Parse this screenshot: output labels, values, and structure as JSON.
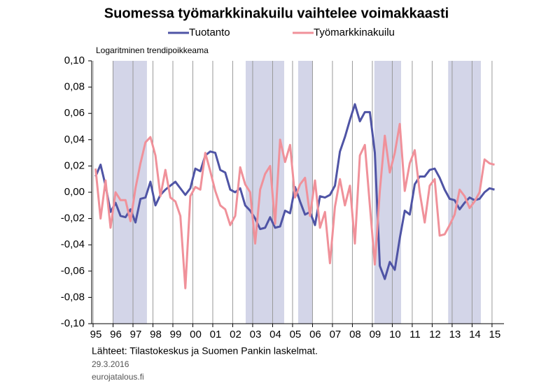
{
  "chart_data": {
    "type": "line",
    "title": "Suomessa työmarkkinakuilu vaihtelee voimakkaasti",
    "y_label": "Logaritminen trendipoikkeama",
    "source": "Lähteet: Tilastokeskus ja Suomen Pankin laskelmat.",
    "date": "29.3.2016",
    "site": "eurojatalous.fi",
    "x": [
      0.125,
      0.375,
      0.625,
      0.875,
      1.125,
      1.375,
      1.625,
      1.875,
      2.125,
      2.375,
      2.625,
      2.875,
      3.125,
      3.375,
      3.625,
      3.875,
      4.125,
      4.375,
      4.625,
      4.875,
      5.125,
      5.375,
      5.625,
      5.875,
      6.125,
      6.375,
      6.625,
      6.875,
      7.125,
      7.375,
      7.625,
      7.875,
      8.125,
      8.375,
      8.625,
      8.875,
      9.125,
      9.375,
      9.625,
      9.875,
      10.125,
      10.375,
      10.625,
      10.875,
      11.125,
      11.375,
      11.625,
      11.875,
      12.125,
      12.375,
      12.625,
      12.875,
      13.125,
      13.375,
      13.625,
      13.875,
      14.125,
      14.375,
      14.625,
      14.875,
      15.125,
      15.375,
      15.625,
      15.875,
      16.125,
      16.375,
      16.625,
      16.875,
      17.125,
      17.375,
      17.625,
      17.875,
      18.125,
      18.375,
      18.625,
      18.875,
      19.125,
      19.375,
      19.625,
      19.875,
      20.125
    ],
    "series": [
      {
        "name": "Tuotanto",
        "color": "#4f54a5",
        "values": [
          0.012,
          0.021,
          0.005,
          -0.015,
          -0.008,
          -0.018,
          -0.019,
          -0.013,
          -0.023,
          -0.005,
          -0.004,
          0.008,
          -0.01,
          -0.002,
          0.002,
          0.005,
          0.008,
          0.003,
          -0.002,
          0.003,
          0.018,
          0.016,
          0.028,
          0.031,
          0.03,
          0.017,
          0.015,
          0.002,
          0.0,
          0.003,
          -0.01,
          -0.014,
          -0.02,
          -0.028,
          -0.027,
          -0.019,
          -0.027,
          -0.026,
          -0.014,
          -0.016,
          0.004,
          -0.007,
          -0.017,
          -0.015,
          -0.025,
          -0.003,
          -0.004,
          -0.002,
          0.005,
          0.031,
          0.042,
          0.055,
          0.067,
          0.054,
          0.061,
          0.061,
          0.03,
          -0.056,
          -0.066,
          -0.053,
          -0.059,
          -0.035,
          -0.014,
          -0.017,
          0.006,
          0.012,
          0.012,
          0.017,
          0.018,
          0.011,
          0.002,
          -0.005,
          -0.006,
          -0.013,
          -0.008,
          -0.004,
          -0.006,
          -0.005,
          0.0,
          0.003,
          0.002
        ]
      },
      {
        "name": "Työmarkkinakuilu",
        "color": "#f0919a",
        "values": [
          0.018,
          -0.02,
          0.009,
          -0.027,
          0.0,
          -0.006,
          -0.006,
          -0.022,
          0.003,
          0.022,
          0.038,
          0.042,
          0.028,
          -0.003,
          0.017,
          -0.004,
          -0.007,
          -0.018,
          -0.073,
          -0.003,
          0.004,
          0.002,
          0.03,
          0.016,
          0.001,
          -0.01,
          -0.013,
          -0.025,
          -0.018,
          0.019,
          0.006,
          0.0,
          -0.039,
          0.002,
          0.014,
          0.02,
          -0.024,
          0.04,
          0.023,
          0.036,
          -0.004,
          0.006,
          0.011,
          -0.018,
          0.009,
          -0.027,
          -0.015,
          -0.054,
          -0.011,
          0.01,
          -0.01,
          0.005,
          -0.039,
          0.028,
          0.036,
          -0.01,
          -0.055,
          0.001,
          0.043,
          0.015,
          0.03,
          0.052,
          0.001,
          0.022,
          0.032,
          0.0,
          -0.023,
          0.005,
          0.01,
          -0.033,
          -0.032,
          -0.025,
          -0.017,
          0.002,
          -0.003,
          -0.012,
          -0.007,
          0.0,
          0.025,
          0.022,
          0.021
        ]
      }
    ],
    "shaded_ranges": [
      [
        0.98,
        2.7
      ],
      [
        7.65,
        9.58
      ],
      [
        10.28,
        11.0
      ],
      [
        14.1,
        15.44
      ],
      [
        17.8,
        19.44
      ]
    ],
    "shade_color": "#d3d5e8",
    "xlim": [
      -0.07,
      20.6
    ],
    "xticks": [
      {
        "value": 0,
        "label": "95"
      },
      {
        "value": 1,
        "label": "96"
      },
      {
        "value": 2,
        "label": "97"
      },
      {
        "value": 3,
        "label": "98"
      },
      {
        "value": 4,
        "label": "99"
      },
      {
        "value": 5,
        "label": "00"
      },
      {
        "value": 6,
        "label": "01"
      },
      {
        "value": 7,
        "label": "02"
      },
      {
        "value": 8,
        "label": "03"
      },
      {
        "value": 9,
        "label": "04"
      },
      {
        "value": 10,
        "label": "05"
      },
      {
        "value": 11,
        "label": "06"
      },
      {
        "value": 12,
        "label": "07"
      },
      {
        "value": 13,
        "label": "08"
      },
      {
        "value": 14,
        "label": "09"
      },
      {
        "value": 15,
        "label": "10"
      },
      {
        "value": 16,
        "label": "11"
      },
      {
        "value": 17,
        "label": "12"
      },
      {
        "value": 18,
        "label": "13"
      },
      {
        "value": 19,
        "label": "14"
      },
      {
        "value": 20,
        "label": "15"
      }
    ],
    "ylim": [
      -0.1,
      0.1
    ],
    "yticks": [
      {
        "value": -0.1,
        "label": "-0,10"
      },
      {
        "value": -0.08,
        "label": "-0,08"
      },
      {
        "value": -0.06,
        "label": "-0,06"
      },
      {
        "value": -0.04,
        "label": "-0,04"
      },
      {
        "value": -0.02,
        "label": "-0,02"
      },
      {
        "value": 0,
        "label": "0,00"
      },
      {
        "value": 0.02,
        "label": "0,02"
      },
      {
        "value": 0.04,
        "label": "0,04"
      },
      {
        "value": 0.06,
        "label": "0,06"
      },
      {
        "value": 0.08,
        "label": "0,08"
      },
      {
        "value": 0.1,
        "label": "0,10"
      }
    ],
    "xgrid": true
  }
}
